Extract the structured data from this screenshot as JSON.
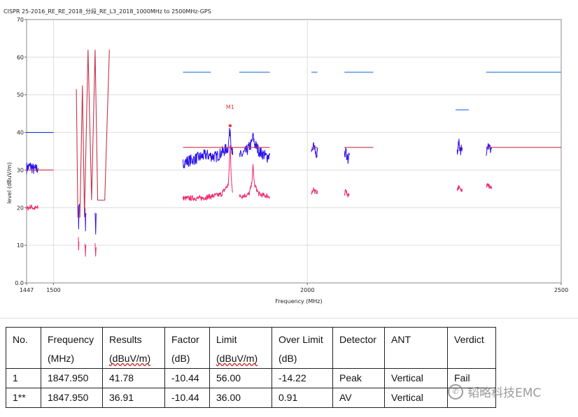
{
  "chart_data": {
    "type": "line",
    "title": "CISPR 25-2016_RE_RE_2018_分段_RE_L3_2018_1000MHz to 2500MHz-GPS",
    "xlabel": "Frequency (MHz)",
    "ylabel": "level (dBuV/m)",
    "xlim": [
      1447,
      2500
    ],
    "ylim": [
      0,
      70
    ],
    "x_ticks": [
      "1447",
      "1500",
      "2000",
      "2500"
    ],
    "x_tick_values": [
      1447,
      1500,
      2000,
      2500
    ],
    "y_ticks": [
      "0.0",
      "10",
      "20",
      "30",
      "40",
      "50",
      "60",
      "70"
    ],
    "y_tick_values": [
      0,
      10,
      20,
      30,
      40,
      50,
      60,
      70
    ],
    "grid": true,
    "colors": {
      "peak": "#2b12ee",
      "average": "#f0286a",
      "peak_limit": "#1a36d0",
      "average_limit": "#c8334b",
      "limit_segment": "#6699ee",
      "marker": "#e83a3a"
    },
    "series": [
      {
        "role": "peak",
        "points": [
          [
            1447,
            30.5
          ],
          [
            1455,
            31
          ],
          [
            1462,
            30
          ],
          [
            1470,
            30.5
          ]
        ]
      },
      {
        "role": "average",
        "points": [
          [
            1447,
            19.6
          ],
          [
            1455,
            20.3
          ],
          [
            1462,
            19.8
          ],
          [
            1470,
            20
          ]
        ]
      },
      {
        "role": "peak",
        "points": [
          [
            1549,
            20
          ],
          [
            1549.5,
            14
          ],
          [
            1550,
            18
          ],
          [
            1551,
            21
          ]
        ]
      },
      {
        "role": "peak",
        "points": [
          [
            1562,
            19
          ],
          [
            1563,
            15
          ],
          [
            1564,
            18.5
          ]
        ]
      },
      {
        "role": "peak",
        "points": [
          [
            1582,
            20
          ],
          [
            1583,
            14
          ],
          [
            1584,
            18.5
          ]
        ]
      },
      {
        "role": "average",
        "points": [
          [
            1549,
            11.5
          ],
          [
            1549.5,
            8.5
          ],
          [
            1550,
            11
          ]
        ]
      },
      {
        "role": "average",
        "points": [
          [
            1562,
            10.5
          ],
          [
            1563,
            7.5
          ],
          [
            1564,
            10
          ]
        ]
      },
      {
        "role": "average",
        "points": [
          [
            1582,
            10
          ],
          [
            1583,
            6.5
          ],
          [
            1584,
            9.5
          ]
        ]
      },
      {
        "role": "peak",
        "points": [
          [
            1755,
            32
          ],
          [
            1780,
            33
          ],
          [
            1800,
            34
          ],
          [
            1820,
            33.5
          ],
          [
            1835,
            35
          ],
          [
            1844,
            36
          ],
          [
            1846,
            39
          ],
          [
            1848,
            41
          ],
          [
            1850,
            37
          ],
          [
            1853,
            34
          ]
        ]
      },
      {
        "role": "peak",
        "points": [
          [
            1866,
            33.5
          ],
          [
            1880,
            35
          ],
          [
            1890,
            37
          ],
          [
            1893,
            39
          ],
          [
            1896,
            37
          ],
          [
            1905,
            35
          ],
          [
            1920,
            33.5
          ],
          [
            1926,
            34
          ]
        ]
      },
      {
        "role": "average",
        "points": [
          [
            1755,
            22.5
          ],
          [
            1790,
            22.5
          ],
          [
            1830,
            23.5
          ],
          [
            1844,
            26
          ],
          [
            1846,
            30
          ],
          [
            1848,
            36.9
          ],
          [
            1850,
            28
          ],
          [
            1853,
            24
          ]
        ]
      },
      {
        "role": "average",
        "points": [
          [
            1866,
            23
          ],
          [
            1885,
            23.5
          ],
          [
            1890,
            26
          ],
          [
            1893,
            31
          ],
          [
            1896,
            26
          ],
          [
            1905,
            23.5
          ],
          [
            1926,
            23
          ]
        ]
      },
      {
        "role": "peak",
        "points": [
          [
            2008,
            35
          ],
          [
            2012,
            36
          ],
          [
            2016,
            34.5
          ],
          [
            2020,
            35
          ]
        ]
      },
      {
        "role": "average",
        "points": [
          [
            2008,
            24
          ],
          [
            2012,
            25
          ],
          [
            2016,
            24
          ],
          [
            2020,
            24.5
          ]
        ]
      },
      {
        "role": "peak",
        "points": [
          [
            2073,
            33.5
          ],
          [
            2076,
            35
          ],
          [
            2080,
            33
          ],
          [
            2083,
            34
          ]
        ]
      },
      {
        "role": "average",
        "points": [
          [
            2073,
            23.5
          ],
          [
            2076,
            24.5
          ],
          [
            2080,
            23
          ],
          [
            2083,
            23.5
          ]
        ]
      },
      {
        "role": "peak",
        "points": [
          [
            2295,
            35
          ],
          [
            2298,
            37
          ],
          [
            2302,
            35.5
          ],
          [
            2305,
            36
          ]
        ]
      },
      {
        "role": "average",
        "points": [
          [
            2295,
            25
          ],
          [
            2298,
            25.5
          ],
          [
            2302,
            24.5
          ],
          [
            2305,
            25
          ]
        ]
      },
      {
        "role": "peak",
        "points": [
          [
            2352,
            35
          ],
          [
            2355,
            37
          ],
          [
            2360,
            35.5
          ],
          [
            2363,
            36
          ]
        ]
      },
      {
        "role": "average",
        "points": [
          [
            2352,
            25.5
          ],
          [
            2355,
            26
          ],
          [
            2360,
            25
          ],
          [
            2363,
            25.5
          ]
        ]
      }
    ],
    "limits": [
      {
        "role": "peak_limit",
        "points": [
          [
            1447,
            40
          ],
          [
            1500,
            40
          ]
        ]
      },
      {
        "role": "average_limit",
        "points": [
          [
            1447,
            30
          ],
          [
            1500,
            30
          ]
        ]
      },
      {
        "role": "average_limit",
        "points": [
          [
            1545,
            51.5
          ],
          [
            1548,
            17.5
          ],
          [
            1552,
            17.5
          ],
          [
            1557,
            52.5
          ],
          [
            1561,
            17.5
          ],
          [
            1568,
            62
          ],
          [
            1575,
            22
          ],
          [
            1582,
            62
          ],
          [
            1587,
            22
          ],
          [
            1601,
            22
          ],
          [
            1610,
            62
          ]
        ]
      },
      {
        "role": "average_limit",
        "points": [
          [
            1755,
            36
          ],
          [
            1926,
            36
          ]
        ]
      },
      {
        "role": "average_limit",
        "points": [
          [
            2008,
            36
          ],
          [
            2020,
            36
          ]
        ]
      },
      {
        "role": "average_limit",
        "points": [
          [
            2073,
            36
          ],
          [
            2130,
            36
          ]
        ]
      },
      {
        "role": "average_limit",
        "points": [
          [
            2295,
            36
          ],
          [
            2305,
            36
          ]
        ]
      },
      {
        "role": "average_limit",
        "points": [
          [
            2352,
            36
          ],
          [
            2500,
            36
          ]
        ]
      },
      {
        "role": "limit_segment",
        "points": [
          [
            1755,
            56
          ],
          [
            1810,
            56
          ]
        ]
      },
      {
        "role": "limit_segment",
        "points": [
          [
            1866,
            56
          ],
          [
            1926,
            56
          ]
        ]
      },
      {
        "role": "limit_segment",
        "points": [
          [
            2008,
            56
          ],
          [
            2020,
            56
          ]
        ]
      },
      {
        "role": "limit_segment",
        "points": [
          [
            2073,
            56
          ],
          [
            2130,
            56
          ]
        ]
      },
      {
        "role": "limit_segment",
        "points": [
          [
            2292,
            46
          ],
          [
            2318,
            46
          ]
        ]
      },
      {
        "role": "limit_segment",
        "points": [
          [
            2352,
            56
          ],
          [
            2500,
            56
          ]
        ]
      }
    ],
    "markers": [
      {
        "label": "M1",
        "x": 1847.95,
        "y": 41.78
      }
    ]
  },
  "table": {
    "headers": [
      [
        "No.",
        ""
      ],
      [
        "Frequency",
        "(MHz)"
      ],
      [
        "Results",
        "(dBuV/m)"
      ],
      [
        "Factor",
        "(dB)"
      ],
      [
        "Limit",
        "(dBuV/m)"
      ],
      [
        "Over Limit",
        "(dB)"
      ],
      [
        "Detector",
        ""
      ],
      [
        "ANT",
        ""
      ],
      [
        "Verdict",
        ""
      ]
    ],
    "rows": [
      [
        "1",
        "1847.950",
        "41.78",
        "-10.44",
        "56.00",
        "-14.22",
        "Peak",
        "Vertical",
        "Fail"
      ],
      [
        "1**",
        "1847.950",
        "36.91",
        "-10.44",
        "36.00",
        "0.91",
        "AV",
        "Vertical",
        ""
      ]
    ]
  },
  "watermark": {
    "text": "韬略科技EMC",
    "icon": "wechat-icon"
  }
}
